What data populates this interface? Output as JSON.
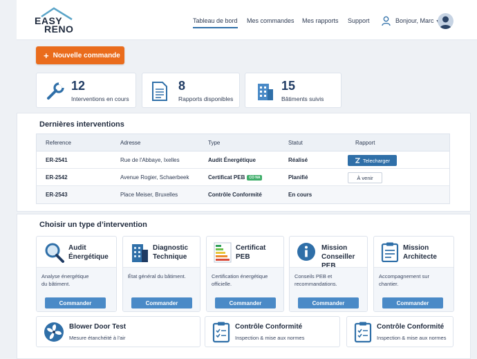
{
  "logo": {
    "line1": "EASY",
    "line2": "RENO"
  },
  "nav": {
    "items": [
      "Tableau de bord",
      "Mes commandes",
      "Mes rapports",
      "Support"
    ],
    "active": "Tableau de bord"
  },
  "user": {
    "greeting": "Bonjour, Marc"
  },
  "new_order": {
    "icon": "+",
    "label": "Nouvelle commande"
  },
  "stats": [
    {
      "icon": "wrench-icon",
      "value": "12",
      "label": "Interventions en cours"
    },
    {
      "icon": "document-icon",
      "value": "8",
      "label": "Rapports disponibles"
    },
    {
      "icon": "building-icon",
      "value": "15",
      "label": "Bâtiments suivis"
    }
  ],
  "interventions": {
    "title": "Dernières interventions",
    "columns": [
      "Reference",
      "Adresse",
      "Type",
      "Statut",
      "Rapport"
    ],
    "rows": [
      {
        "ref": "ER-2541",
        "address": "Rue de l'Abbaye, Ixelles",
        "type": "Audit Énergétique",
        "badge": "",
        "status": "Réalisé",
        "report": "Telecharger"
      },
      {
        "ref": "ER-2542",
        "address": "Avenue Rogier, Schaerbeek",
        "type": "Certificat PEB",
        "badge": "CO NA",
        "status": "Planifié",
        "report": "À venir"
      },
      {
        "ref": "ER-2543",
        "address": "Place Meiser, Bruxelles",
        "type": "Contrôle Conformité",
        "badge": "",
        "status": "En cours",
        "report": ""
      }
    ]
  },
  "types": {
    "title": "Choisir un type d’intervention",
    "button_label": "Commander",
    "cards": [
      {
        "icon": "magnifier-icon",
        "line1": "Audit",
        "line2": "Énergétique",
        "desc1": "Analyse énergétique",
        "desc2": "du bâtiment."
      },
      {
        "icon": "building-icon",
        "line1": "Diagnostic",
        "line2": "Technique",
        "desc1": "État général du bâtiment.",
        "desc2": ""
      },
      {
        "icon": "peb-label-icon",
        "line1": "Certificat",
        "line2": "PEB",
        "desc1": "Certification énergétique",
        "desc2": "officielle."
      },
      {
        "icon": "info-icon",
        "line1": "Mission",
        "line2": "Conseiller PEB",
        "desc1": "Conseils PEB et",
        "desc2": "recommandations."
      },
      {
        "icon": "clipboard-icon",
        "line1": "Mission",
        "line2": "Architecte",
        "desc1": "Accompagnement sur",
        "desc2": "chantier."
      }
    ],
    "wide_cards": [
      {
        "icon": "fan-icon",
        "title": "Blower Door Test",
        "desc": "Mesure étanchéité à l'air"
      },
      {
        "icon": "clipboard-check-icon",
        "title": "Contrôle Conformité",
        "desc": "Inspection & mise aux normes"
      },
      {
        "icon": "clipboard-check-icon",
        "title": "Contrôle Conformité",
        "desc": "Inspection & mise aux normes"
      }
    ]
  },
  "colors": {
    "accent": "#ea6c1c",
    "primary": "#2f6fa8",
    "button": "#4a8ac7",
    "navy": "#1f3b63"
  }
}
